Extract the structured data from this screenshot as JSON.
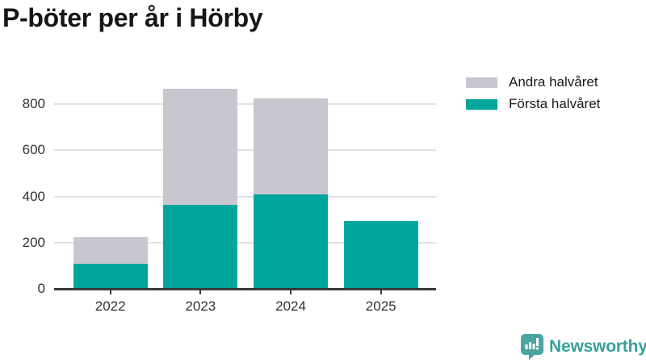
{
  "title": "P-böter per år i Hörby",
  "chart_data": {
    "type": "bar",
    "stacked": true,
    "title": "P-böter per år i Hörby",
    "categories": [
      "2022",
      "2023",
      "2024",
      "2025"
    ],
    "series": [
      {
        "name": "Första halvåret",
        "color": "#00a69c",
        "values": [
          110,
          365,
          410,
          295
        ]
      },
      {
        "name": "Andra halvåret",
        "color": "#c8c6cf",
        "values": [
          112,
          500,
          415,
          0
        ]
      }
    ],
    "xlabel": "",
    "ylabel": "",
    "yticks": [
      0,
      200,
      400,
      600,
      800
    ],
    "ylim": [
      0,
      915
    ],
    "grid": true,
    "legend_position": "top-right"
  },
  "legend": {
    "items": [
      {
        "label": "Andra halvåret",
        "color": "#c8c6cf"
      },
      {
        "label": "Första halvåret",
        "color": "#00a69c"
      }
    ]
  },
  "footer": {
    "brand": "Newsworthy"
  },
  "colors": {
    "first_half": "#00a69c",
    "second_half": "#c8c6cf",
    "axis": "#3a3a3a",
    "gridline": "#e2e2e2",
    "title_text": "#161616",
    "tick_text": "#333333",
    "brand": "#3a9f9a",
    "background": "#ffffff"
  }
}
